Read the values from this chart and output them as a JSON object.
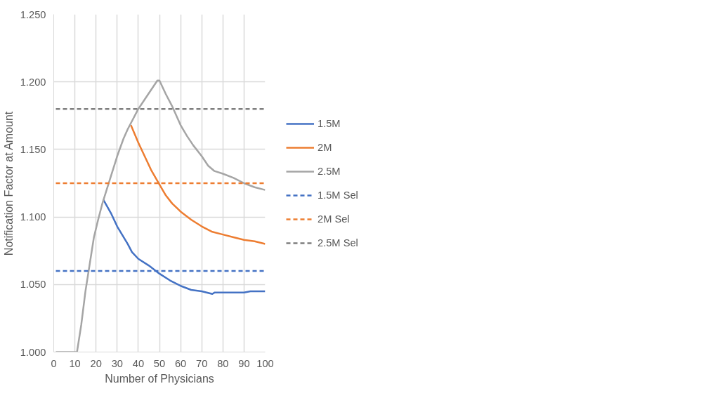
{
  "chart_data": {
    "type": "line",
    "xlabel": "Number of Physicians",
    "ylabel": "Notification Factor at Amount",
    "xlim": [
      0,
      100
    ],
    "xticks": [
      0,
      10,
      20,
      30,
      40,
      50,
      60,
      70,
      80,
      90,
      100
    ],
    "ylim": [
      1.0,
      1.25
    ],
    "yticks": [
      {
        "value": 1.0,
        "label": "1.000"
      },
      {
        "value": 1.05,
        "label": "1.050"
      },
      {
        "value": 1.1,
        "label": "1.100"
      },
      {
        "value": 1.15,
        "label": "1.150"
      },
      {
        "value": 1.2,
        "label": "1.200"
      },
      {
        "value": 1.25,
        "label": "1.250"
      }
    ],
    "grid": true,
    "legend": "right",
    "series": [
      {
        "name": "1.5M",
        "color": "#4472c4",
        "line_style": "solid",
        "x": [
          23.4,
          27,
          30,
          35,
          37,
          40,
          45,
          50,
          55,
          60,
          65,
          70,
          75,
          76,
          80,
          90,
          93,
          100
        ],
        "values": [
          1.113,
          1.103,
          1.093,
          1.08,
          1.074,
          1.069,
          1.064,
          1.058,
          1.053,
          1.049,
          1.046,
          1.045,
          1.043,
          1.044,
          1.044,
          1.044,
          1.045,
          1.045
        ]
      },
      {
        "name": "2M",
        "color": "#ed7d31",
        "line_style": "solid",
        "x": [
          36.5,
          40,
          43,
          46,
          50,
          53,
          56,
          60,
          65,
          70,
          75,
          80,
          85,
          90,
          95,
          100
        ],
        "values": [
          1.168,
          1.155,
          1.145,
          1.135,
          1.124,
          1.116,
          1.11,
          1.104,
          1.098,
          1.093,
          1.089,
          1.087,
          1.085,
          1.083,
          1.082,
          1.08
        ]
      },
      {
        "name": "2.5M",
        "color": "#a5a5a5",
        "line_style": "solid",
        "x": [
          1,
          11,
          13,
          15,
          17,
          19,
          21,
          23,
          25,
          27,
          30,
          33,
          35,
          37,
          40,
          43,
          46,
          49,
          50,
          53,
          56,
          60,
          63,
          66,
          70,
          73,
          76,
          80,
          85,
          90,
          95,
          100
        ],
        "values": [
          1.0,
          1.0,
          1.02,
          1.045,
          1.065,
          1.085,
          1.098,
          1.11,
          1.12,
          1.13,
          1.145,
          1.158,
          1.165,
          1.171,
          1.18,
          1.187,
          1.194,
          1.201,
          1.201,
          1.191,
          1.182,
          1.168,
          1.16,
          1.153,
          1.145,
          1.138,
          1.134,
          1.132,
          1.129,
          1.125,
          1.122,
          1.12
        ]
      },
      {
        "name": "1.5M Sel",
        "color": "#4472c4",
        "line_style": "dashed",
        "x": [
          1,
          100
        ],
        "values": [
          1.06,
          1.06
        ]
      },
      {
        "name": "2M Sel",
        "color": "#ed7d31",
        "line_style": "dashed",
        "x": [
          1,
          100
        ],
        "values": [
          1.125,
          1.125
        ]
      },
      {
        "name": "2.5M Sel",
        "color": "#7f7f7f",
        "line_style": "dashed",
        "x": [
          1,
          100
        ],
        "values": [
          1.18,
          1.18
        ]
      }
    ]
  }
}
